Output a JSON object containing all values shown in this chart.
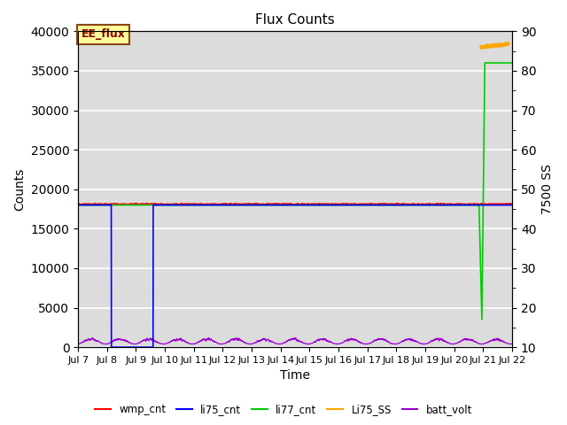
{
  "title": "Flux Counts",
  "ylabel_left": "Counts",
  "ylabel_right": "7500 SS",
  "xlabel": "Time",
  "annotation_text": "EE_flux",
  "annotation_bg": "#FFFF99",
  "annotation_border": "#8B4513",
  "ylim_left": [
    0,
    40000
  ],
  "ylim_right": [
    10,
    90
  ],
  "yticks_left": [
    0,
    5000,
    10000,
    15000,
    20000,
    25000,
    30000,
    35000,
    40000
  ],
  "yticks_right": [
    10,
    20,
    30,
    40,
    50,
    60,
    70,
    80,
    90
  ],
  "x_start_day": 7,
  "x_end_day": 22,
  "xtick_days": [
    7,
    8,
    9,
    10,
    11,
    12,
    13,
    14,
    15,
    16,
    17,
    18,
    19,
    20,
    21,
    22
  ],
  "bg_color": "#DCDCDC",
  "series": {
    "wmp_cnt": {
      "color": "#FF0000",
      "label": "wmp_cnt"
    },
    "li75_cnt": {
      "color": "#0000FF",
      "label": "li75_cnt"
    },
    "li77_cnt": {
      "color": "#00CC00",
      "label": "li77_cnt"
    },
    "Li75_SS": {
      "color": "#FFA500",
      "label": "Li75_SS"
    },
    "batt_volt": {
      "color": "#9900CC",
      "label": "batt_volt"
    }
  },
  "figsize": [
    6.4,
    4.8
  ],
  "dpi": 100
}
